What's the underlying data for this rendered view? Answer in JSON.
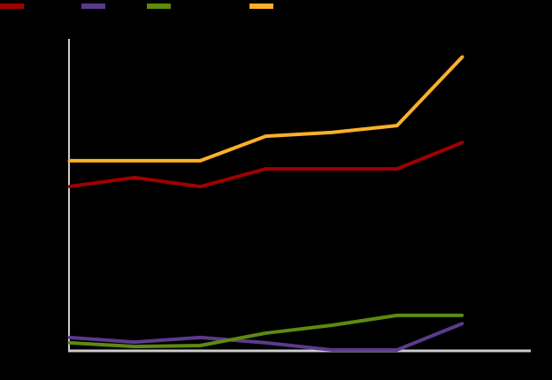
{
  "chart_data": {
    "type": "line",
    "title": "",
    "xlabel": "",
    "ylabel": "",
    "x": [
      1,
      2,
      3,
      4,
      5,
      6,
      7
    ],
    "ylim": [
      0,
      100
    ],
    "grid": false,
    "legend_placement": "top-left",
    "background": "#000000",
    "axis_color": "#cccccc",
    "series": [
      {
        "color": "#a00000",
        "values": [
          52.8,
          55.7,
          52.8,
          58.5,
          58.5,
          58.5,
          67.0
        ]
      },
      {
        "color": "#5b3a8c",
        "values": [
          4.3,
          2.8,
          4.3,
          2.6,
          0.3,
          0.3,
          8.8
        ]
      },
      {
        "color": "#5e8a10",
        "values": [
          2.6,
          1.4,
          1.7,
          5.7,
          8.2,
          11.4,
          11.4
        ]
      },
      {
        "color": "#fbb02a",
        "values": [
          61.1,
          61.1,
          61.1,
          69.0,
          70.2,
          72.4,
          94.6
        ]
      }
    ]
  }
}
